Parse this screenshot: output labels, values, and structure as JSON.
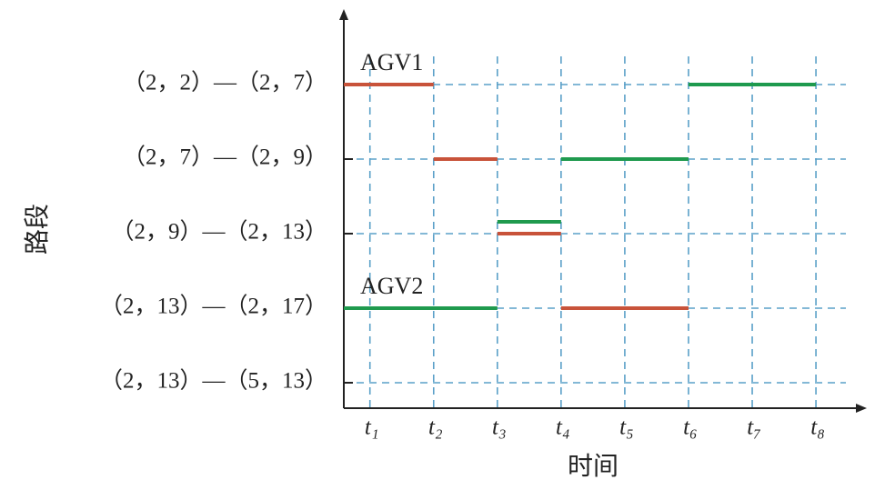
{
  "chart_data": {
    "type": "gantt",
    "y_label": "路段",
    "x_label": "时间",
    "categories": [
      "（2，2）—（2，7）",
      "（2，7）—（2，9）",
      "（2，9）—（2，13）",
      "（2，13）—（2，17）",
      "（2，13）—（5，13）"
    ],
    "xlim": [
      0.59,
      8.47
    ],
    "xticks": [
      {
        "value": 1,
        "label": "t₁"
      },
      {
        "value": 2,
        "label": "t₂"
      },
      {
        "value": 3,
        "label": "t₃"
      },
      {
        "value": 4,
        "label": "t₄"
      },
      {
        "value": 5,
        "label": "t₅"
      },
      {
        "value": 6,
        "label": "t₆"
      },
      {
        "value": 7,
        "label": "t₇"
      },
      {
        "value": 8,
        "label": "t₈"
      }
    ],
    "grid": true,
    "series": [
      {
        "name": "AGV1",
        "color": "#c8533a",
        "values": [
          [
            0.59,
            2
          ],
          [
            2,
            3
          ],
          [
            3,
            4
          ],
          [
            4,
            6
          ],
          null
        ]
      },
      {
        "name": "AGV2",
        "color": "#1f9a4e",
        "values": [
          [
            6,
            8
          ],
          [
            4,
            6
          ],
          [
            3,
            4
          ],
          [
            0.59,
            3
          ],
          null
        ]
      }
    ]
  }
}
